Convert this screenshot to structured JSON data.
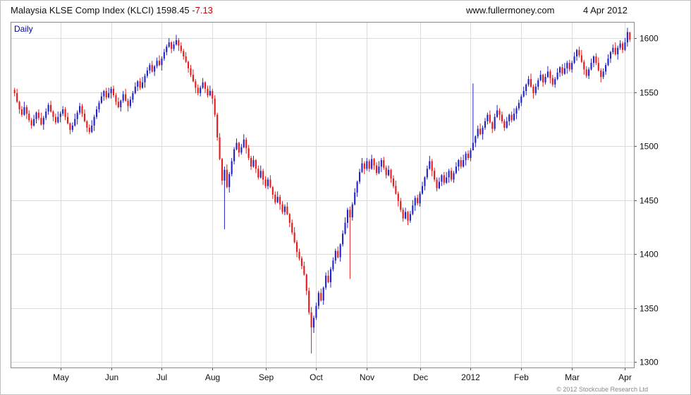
{
  "header": {
    "title": "Malaysia KLSE Comp Index (KLCI)",
    "last_price": "1598.45",
    "change": "-7.13",
    "website": "www.fullermoney.com",
    "date": "4 Apr 2012"
  },
  "chart_label": "Daily",
  "footer": {
    "copyright": "© 2012 Stockcube Research Ltd"
  },
  "chart_data": {
    "type": "candlestick",
    "title": "Malaysia KLSE Comp Index (KLCI) Daily",
    "ylim": [
      1295,
      1615
    ],
    "y_ticks": [
      1300,
      1350,
      1400,
      1450,
      1500,
      1550,
      1600
    ],
    "x_ticks": [
      "May",
      "Jun",
      "Jul",
      "Aug",
      "Sep",
      "Oct",
      "Nov",
      "Dec",
      "2012",
      "Feb",
      "Mar",
      "Apr"
    ],
    "month_start_indices": [
      19,
      40,
      61,
      82,
      104,
      125,
      146,
      168,
      189,
      210,
      231,
      253
    ],
    "grid": true,
    "legend": "none",
    "up_color": "#2424c4",
    "down_color": "#e51c1c",
    "closes": [
      1549,
      1541,
      1534,
      1529,
      1536,
      1530,
      1524,
      1519,
      1525,
      1531,
      1526,
      1520,
      1526,
      1532,
      1538,
      1532,
      1527,
      1522,
      1527,
      1530,
      1534,
      1527,
      1521,
      1515,
      1519,
      1525,
      1531,
      1537,
      1530,
      1523,
      1517,
      1513,
      1519,
      1527,
      1534,
      1540,
      1546,
      1551,
      1545,
      1549,
      1553,
      1547,
      1541,
      1536,
      1542,
      1548,
      1542,
      1537,
      1543,
      1549,
      1555,
      1560,
      1554,
      1559,
      1565,
      1570,
      1575,
      1569,
      1574,
      1579,
      1575,
      1581,
      1587,
      1592,
      1596,
      1590,
      1594,
      1598,
      1593,
      1588,
      1583,
      1578,
      1572,
      1566,
      1560,
      1554,
      1549,
      1554,
      1559,
      1553,
      1547,
      1551,
      1544,
      1529,
      1508,
      1488,
      1468,
      1478,
      1462,
      1474,
      1486,
      1497,
      1503,
      1494,
      1499,
      1506,
      1498,
      1489,
      1481,
      1487,
      1479,
      1471,
      1477,
      1469,
      1463,
      1469,
      1462,
      1455,
      1448,
      1453,
      1446,
      1439,
      1444,
      1437,
      1429,
      1420,
      1411,
      1402,
      1396,
      1389,
      1381,
      1366,
      1346,
      1332,
      1341,
      1352,
      1364,
      1357,
      1369,
      1380,
      1374,
      1386,
      1394,
      1403,
      1397,
      1409,
      1419,
      1429,
      1441,
      1434,
      1446,
      1457,
      1467,
      1476,
      1484,
      1479,
      1486,
      1479,
      1488,
      1482,
      1475,
      1481,
      1487,
      1480,
      1473,
      1478,
      1470,
      1463,
      1456,
      1449,
      1441,
      1433,
      1439,
      1431,
      1437,
      1445,
      1452,
      1447,
      1456,
      1463,
      1471,
      1479,
      1486,
      1477,
      1469,
      1461,
      1467,
      1473,
      1466,
      1471,
      1477,
      1469,
      1475,
      1481,
      1487,
      1481,
      1487,
      1493,
      1489,
      1496,
      1503,
      1509,
      1516,
      1511,
      1517,
      1523,
      1529,
      1522,
      1516,
      1527,
      1533,
      1529,
      1523,
      1517,
      1523,
      1529,
      1524,
      1530,
      1535,
      1540,
      1546,
      1551,
      1557,
      1562,
      1555,
      1549,
      1555,
      1561,
      1566,
      1559,
      1564,
      1569,
      1563,
      1557,
      1562,
      1568,
      1573,
      1567,
      1572,
      1577,
      1571,
      1577,
      1583,
      1589,
      1584,
      1578,
      1571,
      1565,
      1571,
      1577,
      1583,
      1577,
      1570,
      1564,
      1569,
      1575,
      1581,
      1587,
      1591,
      1585,
      1591,
      1595,
      1589,
      1596,
      1605.58,
      1598.45
    ],
    "spikes": [
      {
        "i": 87,
        "low": 1423
      },
      {
        "i": 123,
        "low": 1308
      },
      {
        "i": 139,
        "low": 1377
      },
      {
        "i": 190,
        "high": 1558,
        "low": 1498
      },
      {
        "i": 254,
        "high": 1609.5
      },
      {
        "i": 255,
        "high": 1604
      }
    ]
  }
}
